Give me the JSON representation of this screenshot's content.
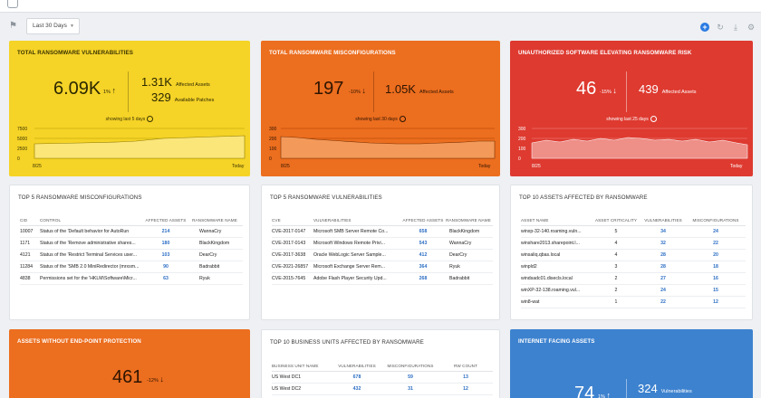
{
  "toolbar": {
    "date_filter": "Last 30 Days"
  },
  "cards": {
    "vuln": {
      "title": "TOTAL RANSOMWARE VULNERABILITIES",
      "big": "6.09K",
      "delta": "1%",
      "side1_value": "1.31K",
      "side1_label": "Affected Assets",
      "side2_value": "329",
      "side2_label": "Available Patches",
      "showing": "showing last 5 days",
      "x_start": "8/25",
      "x_end": "Today",
      "y_ticks": [
        "7500",
        "5000",
        "2500",
        "0"
      ]
    },
    "misconf": {
      "title": "TOTAL RANSOMWARE MISCONFIGURATIONS",
      "big": "197",
      "delta": "-10%",
      "side_value": "1.05K",
      "side_label": "Affected Assets",
      "showing": "showing last 30 days",
      "x_start": "8/25",
      "x_end": "Today",
      "y_ticks": [
        "300",
        "200",
        "100",
        "0"
      ]
    },
    "unauth": {
      "title": "UNAUTHORIZED SOFTWARE ELEVATING RANSOMWARE RISK",
      "big": "46",
      "delta": "-15%",
      "side_value": "439",
      "side_label": "Affected Assets",
      "showing": "showing last 25 days",
      "x_start": "8/25",
      "x_end": "Today",
      "y_ticks": [
        "300",
        "200",
        "100",
        "0"
      ]
    },
    "endpoint": {
      "title": "ASSETS WITHOUT END-POINT PROTECTION",
      "big": "461",
      "delta": "-12%"
    },
    "internet": {
      "title": "INTERNET FACING ASSETS",
      "big": "74",
      "delta": "1%",
      "side_value": "324",
      "side_label": "Vulnerabilities"
    }
  },
  "misconf_table": {
    "title": "TOP 5 RANSOMWARE MISCONFIGURATIONS",
    "headers": [
      "CID",
      "CONTROL",
      "AFFECTED ASSETS",
      "RANSOMWARE NAME"
    ],
    "rows": [
      [
        "10007",
        "Status of the 'Default behavior for AutoRun",
        "214",
        "WannaCry"
      ],
      [
        "1171",
        "Status of the 'Remove administrative shares...",
        "180",
        "BlackKingdom"
      ],
      [
        "4121",
        "Status of the 'Restrict Terminal Services user...",
        "103",
        "DearCry"
      ],
      [
        "11284",
        "Status of the 'SMB 2.0 MiniRedirector (mrxsm...",
        "90",
        "Badrabbit"
      ],
      [
        "4838",
        "Permissions set for the 'HKLM\\Software\\Micr...",
        "63",
        "Ryuk"
      ]
    ]
  },
  "vuln_table": {
    "title": "TOP 5 RANSOMWARE VULNERABILITIES",
    "headers": [
      "CVE",
      "VULNERABILITIES",
      "AFFECTED ASSETS",
      "RANSOMWARE NAME"
    ],
    "rows": [
      [
        "CVE-2017-0147",
        "Microsoft SMB Server Remote Co...",
        "658",
        "BlackKingdom"
      ],
      [
        "CVE-2017-0143",
        "Microsoft Windows Remote Privi...",
        "543",
        "WannaCry"
      ],
      [
        "CVE-2017-3638",
        "Oracle WebLogic Server Sample...",
        "412",
        "DearCry"
      ],
      [
        "CVE-2021-26857",
        "Microsoft Exchange Server Rem...",
        "364",
        "Ryuk"
      ],
      [
        "CVE-2015-7645",
        "Adobe Flash Player Security Upd...",
        "268",
        "Badrabbit"
      ]
    ]
  },
  "assets_table": {
    "title": "TOP 10 ASSETS AFFECTED BY RANSOMWARE",
    "headers": [
      "ASSET NAME",
      "ASSET CRITICALITY",
      "VULNERABILITIES",
      "MISCONFIGURATIONS"
    ],
    "rows": [
      [
        "winxp-32-140.roaming.vuln...",
        "5",
        "34",
        "24"
      ],
      [
        "winshare2013.sharepoint.l...",
        "4",
        "32",
        "22"
      ],
      [
        "winsaliq.qbas.local",
        "4",
        "28",
        "20"
      ],
      [
        "winpld2",
        "3",
        "28",
        "18"
      ],
      [
        "windsadc01.disecls.local",
        "2",
        "27",
        "16"
      ],
      [
        "winXP-32-138.roaming.vul...",
        "2",
        "24",
        "15"
      ],
      [
        "win8-wat",
        "1",
        "22",
        "12"
      ]
    ]
  },
  "bu_table": {
    "title": "TOP 10 BUSINESS UNITS AFFECTED BY RANSOMWARE",
    "headers": [
      "BUSINESS UNIT NAME",
      "VULNERABILITIES",
      "MISCONFIGURATIONS",
      "RW COUNT"
    ],
    "rows": [
      [
        "US West DC1",
        "678",
        "59",
        "13"
      ],
      [
        "US West DC2",
        "432",
        "31",
        "12"
      ]
    ]
  },
  "colors": {
    "yellow": "#f5d327",
    "orange": "#ec6e1f",
    "red": "#de3a30",
    "blue": "#3d82cf",
    "link": "#2a6dc4"
  }
}
